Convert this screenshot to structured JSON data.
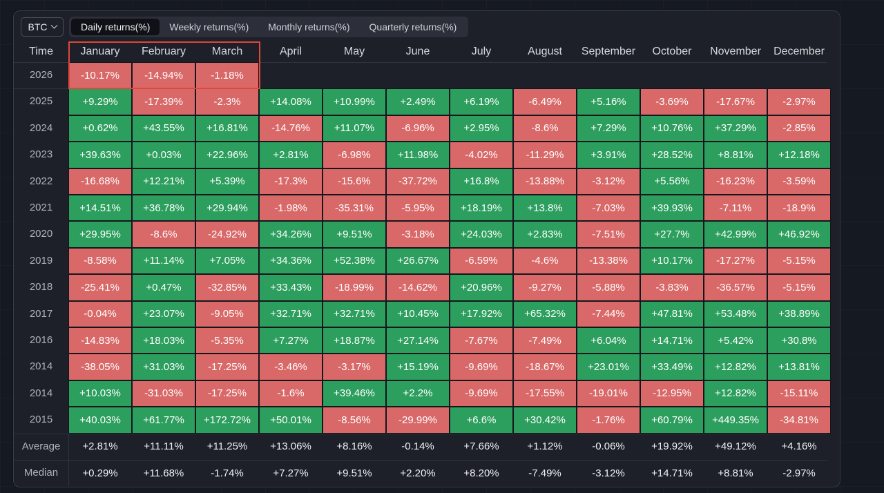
{
  "toolbar": {
    "asset": "BTC",
    "tabs": [
      "Daily returns(%)",
      "Weekly returns(%)",
      "Monthly returns(%)",
      "Quarterly returns(%)"
    ],
    "active_tab": 0
  },
  "table": {
    "time_header": "Time",
    "months": [
      "January",
      "February",
      "March",
      "April",
      "May",
      "June",
      "July",
      "August",
      "September",
      "October",
      "November",
      "December"
    ],
    "rows": [
      {
        "year": "2026",
        "values": [
          "-10.17%",
          "-14.94%",
          "-1.18%",
          "",
          "",
          "",
          "",
          "",
          "",
          "",
          "",
          ""
        ]
      },
      {
        "year": "2025",
        "values": [
          "+9.29%",
          "-17.39%",
          "-2.3%",
          "+14.08%",
          "+10.99%",
          "+2.49%",
          "+6.19%",
          "-6.49%",
          "+5.16%",
          "-3.69%",
          "-17.67%",
          "-2.97%"
        ]
      },
      {
        "year": "2024",
        "values": [
          "+0.62%",
          "+43.55%",
          "+16.81%",
          "-14.76%",
          "+11.07%",
          "-6.96%",
          "+2.95%",
          "-8.6%",
          "+7.29%",
          "+10.76%",
          "+37.29%",
          "-2.85%"
        ]
      },
      {
        "year": "2023",
        "values": [
          "+39.63%",
          "+0.03%",
          "+22.96%",
          "+2.81%",
          "-6.98%",
          "+11.98%",
          "-4.02%",
          "-11.29%",
          "+3.91%",
          "+28.52%",
          "+8.81%",
          "+12.18%"
        ]
      },
      {
        "year": "2022",
        "values": [
          "-16.68%",
          "+12.21%",
          "+5.39%",
          "-17.3%",
          "-15.6%",
          "-37.72%",
          "+16.8%",
          "-13.88%",
          "-3.12%",
          "+5.56%",
          "-16.23%",
          "-3.59%"
        ]
      },
      {
        "year": "2021",
        "values": [
          "+14.51%",
          "+36.78%",
          "+29.94%",
          "-1.98%",
          "-35.31%",
          "-5.95%",
          "+18.19%",
          "+13.8%",
          "-7.03%",
          "+39.93%",
          "-7.11%",
          "-18.9%"
        ]
      },
      {
        "year": "2020",
        "values": [
          "+29.95%",
          "-8.6%",
          "-24.92%",
          "+34.26%",
          "+9.51%",
          "-3.18%",
          "+24.03%",
          "+2.83%",
          "-7.51%",
          "+27.7%",
          "+42.99%",
          "+46.92%"
        ]
      },
      {
        "year": "2019",
        "values": [
          "-8.58%",
          "+11.14%",
          "+7.05%",
          "+34.36%",
          "+52.38%",
          "+26.67%",
          "-6.59%",
          "-4.6%",
          "-13.38%",
          "+10.17%",
          "-17.27%",
          "-5.15%"
        ]
      },
      {
        "year": "2018",
        "values": [
          "-25.41%",
          "+0.47%",
          "-32.85%",
          "+33.43%",
          "-18.99%",
          "-14.62%",
          "+20.96%",
          "-9.27%",
          "-5.88%",
          "-3.83%",
          "-36.57%",
          "-5.15%"
        ]
      },
      {
        "year": "2017",
        "values": [
          "-0.04%",
          "+23.07%",
          "-9.05%",
          "+32.71%",
          "+32.71%",
          "+10.45%",
          "+17.92%",
          "+65.32%",
          "-7.44%",
          "+47.81%",
          "+53.48%",
          "+38.89%"
        ]
      },
      {
        "year": "2016",
        "values": [
          "-14.83%",
          "+18.03%",
          "-5.35%",
          "+7.27%",
          "+18.87%",
          "+27.14%",
          "-7.67%",
          "-7.49%",
          "+6.04%",
          "+14.71%",
          "+5.42%",
          "+30.8%"
        ]
      },
      {
        "year": "2014",
        "values": [
          "-38.05%",
          "+31.03%",
          "-17.25%",
          "-3.46%",
          "-3.17%",
          "+15.19%",
          "-9.69%",
          "-18.67%",
          "+23.01%",
          "+33.49%",
          "+12.82%",
          "+13.81%"
        ]
      },
      {
        "year": "2014",
        "values": [
          "+10.03%",
          "-31.03%",
          "-17.25%",
          "-1.6%",
          "+39.46%",
          "+2.2%",
          "-9.69%",
          "-17.55%",
          "-19.01%",
          "-12.95%",
          "+12.82%",
          "-15.11%"
        ]
      },
      {
        "year": "2015",
        "values": [
          "+40.03%",
          "+61.77%",
          "+172.72%",
          "+50.01%",
          "-8.56%",
          "-29.99%",
          "+6.6%",
          "+30.42%",
          "-1.76%",
          "+60.79%",
          "+449.35%",
          "-34.81%"
        ]
      }
    ],
    "stats": [
      {
        "label": "Average",
        "values": [
          "+2.81%",
          "+11.11%",
          "+11.25%",
          "+13.06%",
          "+8.16%",
          "-0.14%",
          "+7.66%",
          "+1.12%",
          "-0.06%",
          "+19.92%",
          "+49.12%",
          "+4.16%"
        ]
      },
      {
        "label": "Median",
        "values": [
          "+0.29%",
          "+11.68%",
          "-1.74%",
          "+7.27%",
          "+9.51%",
          "+2.20%",
          "+8.20%",
          "-7.49%",
          "-3.12%",
          "+14.71%",
          "+8.81%",
          "-2.97%"
        ]
      }
    ],
    "highlight": {
      "months": [
        "January",
        "February",
        "March"
      ],
      "color": "#e0463a"
    }
  },
  "colors": {
    "positive": "#2c9e5e",
    "negative": "#d96868",
    "background": "#1d2029"
  }
}
